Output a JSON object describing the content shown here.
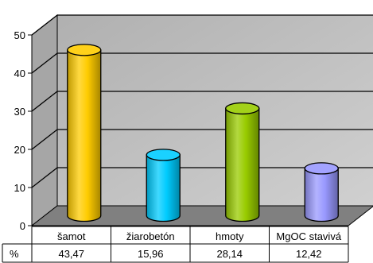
{
  "chart_data": {
    "type": "bar",
    "style": "3d-cylinder",
    "title": "",
    "xlabel": "",
    "ylabel": "",
    "ylim": [
      0,
      50
    ],
    "yticks": [
      0,
      10,
      20,
      30,
      40,
      50
    ],
    "grid": true,
    "legend": "none",
    "categories": [
      "šamot",
      "žiarobetón",
      "hmoty",
      "MgOC stavivá"
    ],
    "series": [
      {
        "name": "%",
        "values": [
          43.47,
          15.96,
          28.14,
          12.42
        ]
      }
    ],
    "value_labels": [
      "43,47",
      "15,96",
      "28,14",
      "12,42"
    ],
    "colors": [
      "#FFCC00",
      "#00CCFF",
      "#99CC00",
      "#9999FF"
    ],
    "wall_color": "#C0C0C0",
    "floor_color": "#808080",
    "table": {
      "row_header": "%"
    }
  }
}
